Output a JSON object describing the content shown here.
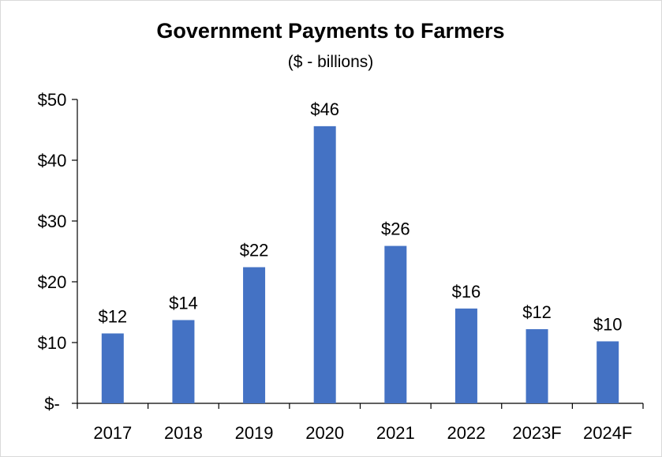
{
  "chart_data": {
    "type": "bar",
    "title": "Government Payments to Farmers",
    "subtitle": "($ - billions)",
    "categories": [
      "2017",
      "2018",
      "2019",
      "2020",
      "2021",
      "2022",
      "2023F",
      "2024F"
    ],
    "values": [
      11.5,
      13.7,
      22.4,
      45.6,
      25.9,
      15.6,
      12.2,
      10.2
    ],
    "data_labels": [
      "$12",
      "$14",
      "$22",
      "$46",
      "$26",
      "$16",
      "$12",
      "$10"
    ],
    "y_tick_labels": [
      "$-",
      "$10",
      "$20",
      "$30",
      "$40",
      "$50"
    ],
    "y_ticks": [
      0,
      10,
      20,
      30,
      40,
      50
    ],
    "ylim": [
      0,
      50
    ],
    "bar_color": "#4472c4",
    "grid": false,
    "legend": "none"
  }
}
